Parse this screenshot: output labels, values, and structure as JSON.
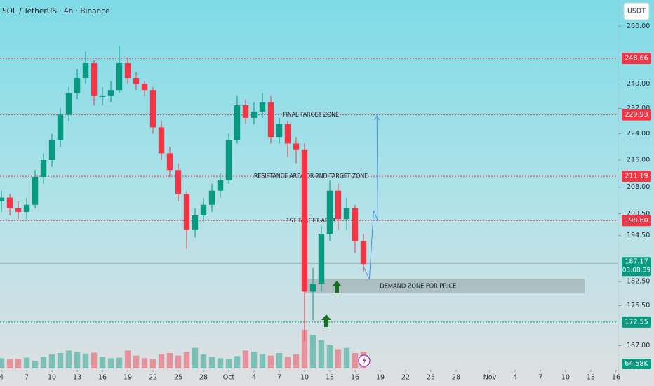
{
  "chart_data": {
    "type": "candlestick",
    "title": "SOL / TetherUS · 4h · Binance",
    "currency": "USDT",
    "log_scale": true,
    "grid": false,
    "up_color": "#089981",
    "down_color": "#f23645",
    "x": [
      4,
      5,
      6,
      7,
      8,
      9,
      10,
      11,
      12,
      13,
      14,
      15,
      16,
      17,
      18,
      19,
      20,
      21,
      22,
      23,
      24,
      25,
      26,
      27,
      28,
      29,
      30,
      31,
      32,
      33,
      34,
      35,
      36,
      37,
      38,
      39,
      40,
      41,
      42,
      43,
      44,
      45,
      46,
      47
    ],
    "open": [
      204,
      205,
      202,
      201,
      203,
      211,
      216,
      222,
      230,
      237,
      242,
      247,
      236,
      236,
      238,
      247,
      242,
      240,
      238,
      226,
      218,
      213,
      206,
      196,
      200,
      203,
      207,
      210,
      222,
      233,
      229,
      231,
      234,
      223,
      227,
      221,
      219,
      180,
      182,
      195,
      207,
      199,
      202,
      193
    ],
    "high": [
      207,
      206,
      204,
      205,
      213,
      218,
      224,
      232,
      239,
      245,
      251,
      248,
      239,
      241,
      253,
      249,
      244,
      241,
      239,
      228,
      220,
      215,
      207,
      202,
      205,
      209,
      212,
      224,
      236,
      235,
      234,
      237,
      236,
      229,
      228,
      223,
      221,
      186,
      197,
      210,
      209,
      205,
      203,
      195
    ],
    "low": [
      201,
      200,
      199,
      199,
      202,
      209,
      214,
      220,
      228,
      235,
      240,
      233,
      233,
      234,
      237,
      240,
      238,
      236,
      224,
      216,
      211,
      204,
      191,
      194,
      198,
      201,
      205,
      209,
      221,
      227,
      227,
      229,
      221,
      221,
      217,
      215,
      168,
      173,
      180,
      193,
      196,
      196,
      190,
      185
    ],
    "close": [
      205,
      202,
      201,
      203,
      211,
      216,
      222,
      230,
      237,
      242,
      247,
      236,
      236,
      238,
      247,
      242,
      240,
      238,
      226,
      218,
      213,
      206,
      196,
      200,
      203,
      207,
      210,
      222,
      233,
      229,
      231,
      234,
      223,
      227,
      221,
      219,
      180,
      182,
      195,
      207,
      199,
      202,
      193,
      187
    ],
    "volume": [
      40,
      35,
      38,
      42,
      30,
      45,
      55,
      60,
      70,
      65,
      58,
      62,
      45,
      40,
      42,
      70,
      50,
      40,
      35,
      55,
      60,
      50,
      65,
      80,
      55,
      45,
      40,
      38,
      48,
      70,
      65,
      55,
      50,
      60,
      45,
      55,
      150,
      130,
      110,
      90,
      75,
      80,
      60,
      64.58
    ],
    "volume_label": "64.58K",
    "xlim": [
      3.83,
      77.17
    ],
    "ylim": [
      161.8,
      269.6
    ],
    "xticks": [
      4,
      7,
      10,
      13,
      16,
      19,
      22,
      25,
      28,
      {
        "value": 31,
        "label": "Oct"
      },
      {
        "value": 34,
        "label": "4"
      },
      {
        "value": 37,
        "label": "7"
      },
      {
        "value": 40,
        "label": "10"
      },
      {
        "value": 43,
        "label": "13"
      },
      {
        "value": 46,
        "label": "16"
      },
      {
        "value": 49,
        "label": "19"
      },
      {
        "value": 52,
        "label": "22"
      },
      {
        "value": 55,
        "label": "25"
      },
      {
        "value": 58,
        "label": "28"
      },
      {
        "value": 62,
        "label": "Nov"
      },
      {
        "value": 65,
        "label": "4"
      },
      {
        "value": 68,
        "label": "7"
      },
      {
        "value": 71,
        "label": "10"
      },
      {
        "value": 74,
        "label": "13"
      },
      {
        "value": 77,
        "label": "16"
      }
    ],
    "yticks": [
      {
        "value": 260,
        "label": "260.00"
      },
      {
        "value": 240,
        "label": "240.00"
      },
      {
        "value": 232,
        "label": "232.00"
      },
      {
        "value": 224,
        "label": "224.00"
      },
      {
        "value": 216,
        "label": "216.00"
      },
      {
        "value": 208,
        "label": "208.00"
      },
      {
        "value": 200.5,
        "label": "200.50"
      },
      {
        "value": 194.5,
        "label": "194.50"
      },
      {
        "value": 182.5,
        "label": "182.50"
      },
      {
        "value": 176.5,
        "label": "176.50"
      },
      {
        "value": 167,
        "label": "167.00"
      }
    ],
    "levels": [
      {
        "value": 248.66,
        "label": "248.66",
        "color": "#f23645"
      },
      {
        "value": 229.93,
        "label": "229.93",
        "color": "#f23645",
        "note": "FINAL TARGET ZONE"
      },
      {
        "value": 211.19,
        "label": "211.19",
        "color": "#f23645",
        "note": "RESISTANCE AREA OR 2ND TARGET ZONE"
      },
      {
        "value": 198.6,
        "label": "198.60",
        "color": "#f23645",
        "note": "1ST TARGET AREA"
      },
      {
        "value": 172.55,
        "label": "172.55",
        "color": "#089981"
      }
    ],
    "current_price": {
      "value": 187.17,
      "label": "187.17",
      "countdown": "03:08:39",
      "color": "#089981"
    },
    "demand_zone": {
      "text": "DEMAND ZONE FOR PRICE",
      "range": [
        179.6,
        183.1
      ],
      "x": [
        40.1,
        73.2
      ]
    },
    "projection": {
      "color": "#4a90e2",
      "x": [
        47,
        47.7,
        48.2,
        48.7,
        48.6
      ],
      "y": [
        186.3,
        183.1,
        201.4,
        198.6,
        229.6
      ]
    }
  }
}
